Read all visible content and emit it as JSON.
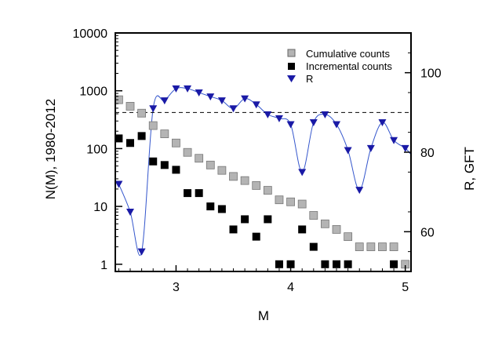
{
  "chart_data": {
    "type": "scatter",
    "title": "",
    "xlabel": "M",
    "ylabel": "N(M), 1980-2012",
    "y2label": "R, GFT",
    "xlim": [
      2.47,
      5.05
    ],
    "ylim": [
      0.75,
      10000
    ],
    "y_scale": "log",
    "y2lim": [
      50,
      110
    ],
    "x_ticks": [
      {
        "value": 3,
        "label": "3"
      },
      {
        "value": 4,
        "label": "4"
      },
      {
        "value": 5,
        "label": "5"
      }
    ],
    "y_ticks": [
      {
        "value": 1,
        "label": "1"
      },
      {
        "value": 10,
        "label": "10"
      },
      {
        "value": 100,
        "label": "100"
      },
      {
        "value": 1000,
        "label": "1000"
      },
      {
        "value": 10000,
        "label": "10000"
      }
    ],
    "y2_ticks": [
      {
        "value": 60,
        "label": "60"
      },
      {
        "value": 80,
        "label": "80"
      },
      {
        "value": 100,
        "label": "100"
      }
    ],
    "reference_line": {
      "y2": 90,
      "style": "dashed"
    },
    "grid": false,
    "legend_position": "top-right",
    "series": [
      {
        "name": "Cumulative counts",
        "marker": "square",
        "color": "#b4b4b4",
        "axis": "left",
        "x": [
          2.5,
          2.6,
          2.7,
          2.8,
          2.9,
          3.0,
          3.1,
          3.2,
          3.3,
          3.4,
          3.5,
          3.6,
          3.7,
          3.8,
          3.9,
          4.0,
          4.1,
          4.2,
          4.3,
          4.4,
          4.5,
          4.6,
          4.7,
          4.8,
          4.9,
          5.0
        ],
        "y": [
          700,
          540,
          410,
          250,
          180,
          125,
          86,
          68,
          52,
          42,
          33,
          28,
          23,
          19,
          13,
          12,
          11,
          7,
          5,
          4,
          3,
          2,
          2,
          2,
          2,
          1
        ]
      },
      {
        "name": "Incremental counts",
        "marker": "square",
        "color": "#000000",
        "axis": "left",
        "x": [
          2.5,
          2.6,
          2.7,
          2.8,
          2.9,
          3.0,
          3.1,
          3.2,
          3.3,
          3.4,
          3.5,
          3.6,
          3.7,
          3.8,
          3.9,
          4.0,
          4.1,
          4.2,
          4.3,
          4.4,
          4.5,
          4.9
        ],
        "y": [
          150,
          125,
          165,
          60,
          52,
          43,
          17,
          17,
          10,
          9,
          4,
          6,
          3,
          6,
          1,
          1,
          4,
          2,
          1,
          1,
          1,
          1
        ]
      },
      {
        "name": "R",
        "marker": "triangle-down",
        "color": "#1a1aa6",
        "line_color": "#3355cc",
        "axis": "right",
        "x": [
          2.5,
          2.6,
          2.7,
          2.8,
          2.9,
          3.0,
          3.1,
          3.2,
          3.3,
          3.4,
          3.5,
          3.6,
          3.7,
          3.8,
          3.9,
          4.0,
          4.1,
          4.2,
          4.3,
          4.4,
          4.5,
          4.6,
          4.7,
          4.8,
          4.9,
          5.0
        ],
        "y": [
          72,
          65,
          55,
          91,
          93,
          96,
          96,
          95,
          94,
          93,
          91,
          93.5,
          92,
          89.5,
          88.5,
          87,
          75,
          87.5,
          89.5,
          87,
          80.5,
          70.5,
          81,
          87.5,
          83,
          81
        ]
      }
    ]
  }
}
